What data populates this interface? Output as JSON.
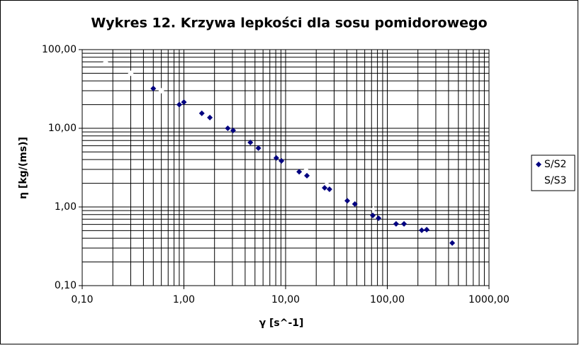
{
  "chart_data": {
    "type": "scatter",
    "title": "Wykres 12. Krzywa lepkości dla sosu pomidorowego",
    "x_label": "γ [s^-1]",
    "y_label": "η [kg/(ms)]",
    "log_x": true,
    "log_y": true,
    "grid": true,
    "minor_grid": true,
    "legend": "right",
    "xlim": [
      0.1,
      1000
    ],
    "ylim": [
      0.1,
      100
    ],
    "xticks": [
      {
        "value": 0.1,
        "label": "0,10"
      },
      {
        "value": 1,
        "label": "1,00"
      },
      {
        "value": 10,
        "label": "10,00"
      },
      {
        "value": 100,
        "label": "100,00"
      },
      {
        "value": 1000,
        "label": "1000,00"
      }
    ],
    "yticks": [
      {
        "value": 0.1,
        "label": "0,10"
      },
      {
        "value": 1,
        "label": "1,00"
      },
      {
        "value": 10,
        "label": "10,00"
      },
      {
        "value": 100,
        "label": "100,00"
      }
    ],
    "series": [
      {
        "name": "S/S2",
        "color": "#000080",
        "x": [
          0.5,
          0.9,
          1.0,
          1.5,
          1.8,
          2.7,
          3.05,
          4.5,
          5.4,
          8.1,
          9.1,
          13.6,
          16.2,
          24.2,
          27,
          40.4,
          48,
          72,
          82,
          122,
          146,
          218,
          244,
          435
        ],
        "values": [
          32,
          20,
          21.5,
          15.5,
          13.7,
          10,
          9.4,
          6.6,
          5.6,
          4.2,
          3.85,
          2.8,
          2.5,
          1.75,
          1.68,
          1.2,
          1.09,
          0.78,
          0.72,
          0.61,
          0.61,
          0.505,
          0.515,
          0.348
        ]
      },
      {
        "name": "S/S3",
        "color": "#ffffff",
        "x": [
          0.17,
          0.3,
          0.6,
          15.9,
          25.4,
          73
        ],
        "values": [
          69,
          50,
          30,
          2.94,
          1.94,
          0.94
        ]
      }
    ]
  }
}
